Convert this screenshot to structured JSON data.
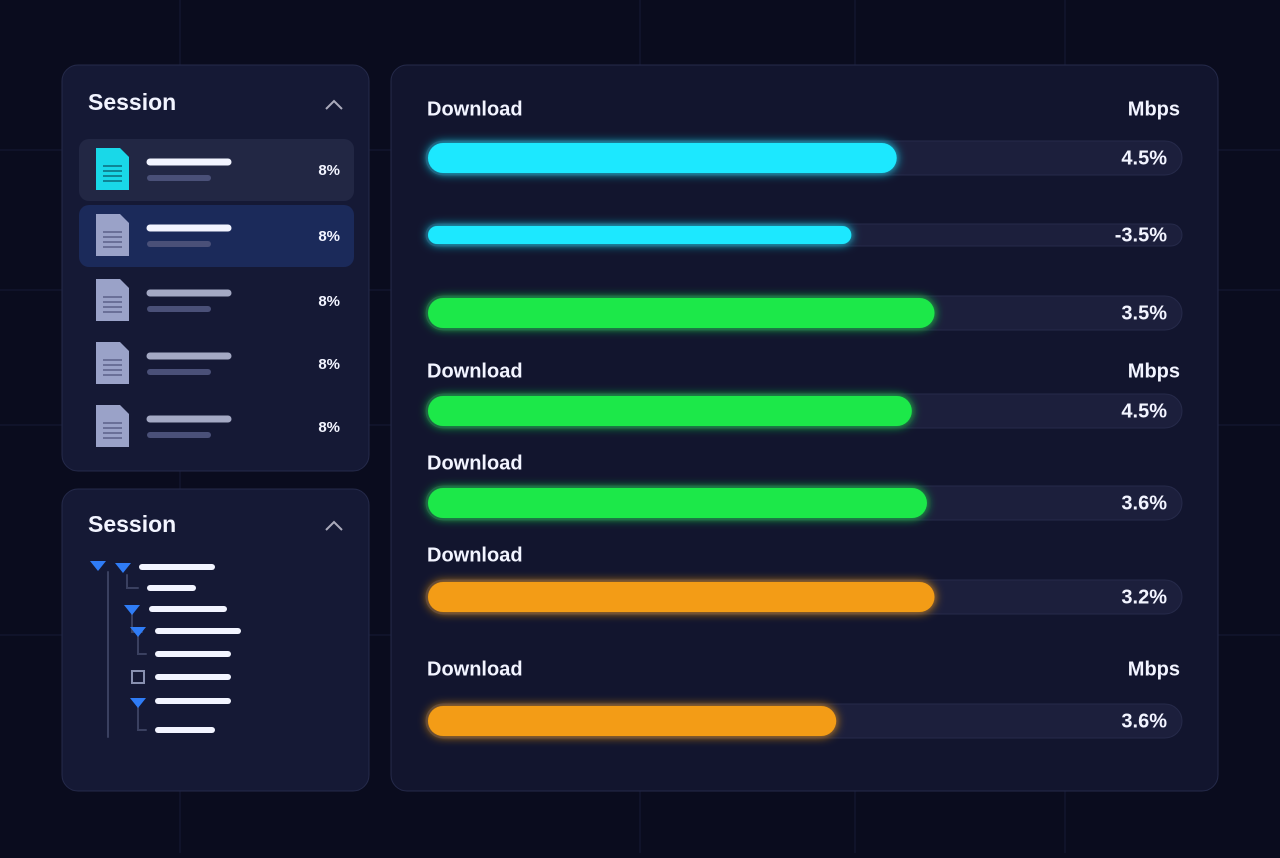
{
  "sidebar": {
    "session_list": {
      "title": "Session",
      "items": [
        {
          "value": "8%"
        },
        {
          "value": "8%"
        },
        {
          "value": "8%"
        },
        {
          "value": "8%"
        },
        {
          "value": "8%"
        }
      ]
    },
    "session_tree": {
      "title": "Session"
    }
  },
  "meters": [
    {
      "label": "Download",
      "unit": "Mbps",
      "value": "4.5%",
      "progress": 62,
      "color": "#1de8ff"
    },
    {
      "value": "-3.5%",
      "progress": 56,
      "color": "#1de8ff"
    },
    {
      "value": "3.5%",
      "progress": 67,
      "color": "#1fe84a"
    },
    {
      "label": "Download",
      "unit": "Mbps",
      "value": "4.5%",
      "progress": 64,
      "color": "#1fe84a"
    },
    {
      "label": "Download",
      "value": "3.6%",
      "progress": 66,
      "color": "#1fe84a"
    },
    {
      "label": "Download",
      "value": "3.2%",
      "progress": 67,
      "color": "#f39c12"
    },
    {
      "label": "Download",
      "unit": "Mbps",
      "value": "3.6%",
      "progress": 54,
      "color": "#f39c12"
    }
  ]
}
